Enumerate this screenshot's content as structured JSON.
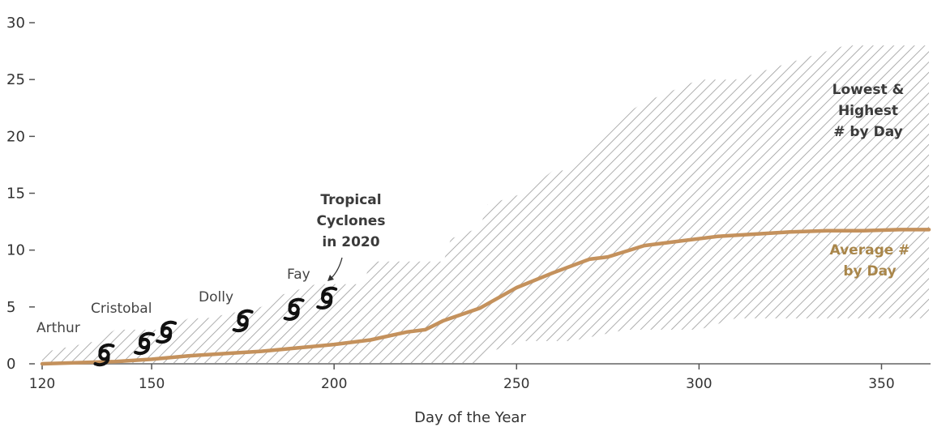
{
  "chart_data": {
    "type": "area",
    "xlabel": "Day of the Year",
    "ylabel": "",
    "xlim": [
      120,
      363
    ],
    "ylim": [
      0,
      30
    ],
    "x_ticks": [
      {
        "value": 120,
        "label": "120"
      },
      {
        "value": 150,
        "label": "150"
      },
      {
        "value": 200,
        "label": "200"
      },
      {
        "value": 250,
        "label": "250"
      },
      {
        "value": 300,
        "label": "300"
      },
      {
        "value": 350,
        "label": "350"
      }
    ],
    "y_ticks": [
      {
        "value": 0,
        "label": "0"
      },
      {
        "value": 5,
        "label": "5"
      },
      {
        "value": 10,
        "label": "10"
      },
      {
        "value": 15,
        "label": "15"
      },
      {
        "value": 20,
        "label": "20"
      },
      {
        "value": 25,
        "label": "25"
      },
      {
        "value": 30,
        "label": "30"
      }
    ],
    "range_band": {
      "label": "Lowest & Highest # by Day",
      "color": "#9a9a9a",
      "x": [
        120,
        135,
        140,
        155,
        160,
        165,
        180,
        185,
        195,
        208,
        210,
        230,
        232,
        240,
        242,
        252,
        260,
        265,
        280,
        285,
        300,
        310,
        330,
        340,
        363
      ],
      "high": [
        1,
        2,
        3,
        3,
        4,
        4,
        5,
        6,
        7,
        7,
        9,
        9,
        11,
        12,
        14,
        15,
        17,
        17,
        22,
        23,
        25,
        25,
        27,
        28,
        28
      ],
      "low": [
        0,
        0,
        0,
        0,
        0,
        0,
        0,
        0,
        0,
        0,
        0,
        0,
        0,
        0,
        1,
        2,
        2,
        2,
        3,
        3,
        3,
        4,
        4,
        4,
        4
      ]
    },
    "series": [
      {
        "name": "Average # by Day",
        "color": "#c4915c",
        "x": [
          120,
          140,
          150,
          160,
          170,
          180,
          190,
          200,
          210,
          220,
          225,
          230,
          240,
          250,
          260,
          270,
          275,
          285,
          295,
          305,
          315,
          325,
          335,
          345,
          355,
          363
        ],
        "y": [
          0,
          0.2,
          0.4,
          0.7,
          0.9,
          1.1,
          1.4,
          1.7,
          2.1,
          2.8,
          3.0,
          3.8,
          4.9,
          6.7,
          8.0,
          9.2,
          9.4,
          10.4,
          10.8,
          11.2,
          11.4,
          11.6,
          11.7,
          11.7,
          11.8,
          11.8
        ]
      }
    ],
    "storms": {
      "title": "Tropical Cyclones in 2020",
      "points": [
        {
          "name": "Arthur",
          "day": 137,
          "count": 1
        },
        {
          "name": "",
          "day": 148,
          "count": 2
        },
        {
          "name": "Cristobal",
          "day": 154,
          "count": 3
        },
        {
          "name": "Dolly",
          "day": 175,
          "count": 4
        },
        {
          "name": "",
          "day": 189,
          "count": 5
        },
        {
          "name": "Fay",
          "day": 198,
          "count": 6
        }
      ]
    },
    "annotations": {
      "band_lines": [
        "Lowest &",
        "Highest",
        "# by Day"
      ],
      "avg_lines": [
        "Average #",
        "by Day"
      ],
      "storm_title_lines": [
        "Tropical",
        "Cyclones",
        "in 2020"
      ]
    }
  }
}
